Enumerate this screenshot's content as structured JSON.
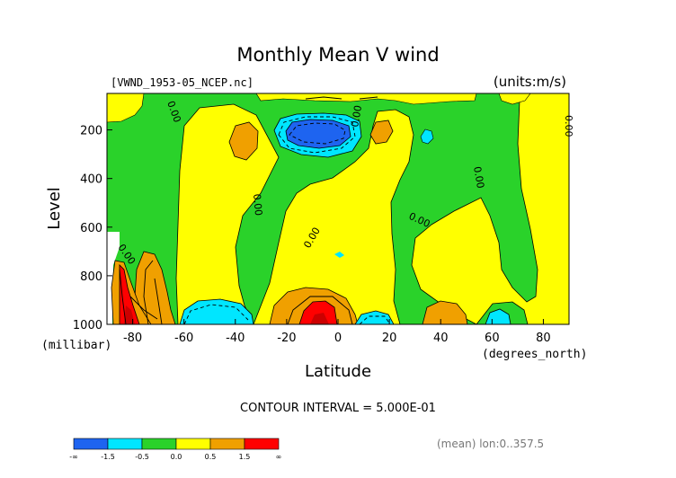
{
  "chart_data": {
    "type": "heatmap",
    "title": "Monthly Mean V wind",
    "dataset_label": "[VWND_1953-05_NCEP.nc]",
    "units_label": "(units:m/s)",
    "ylabel": "Level",
    "yunit": "(millibar)",
    "xlabel": "Latitude",
    "xunit": "(degrees_north)",
    "xlim": [
      -90,
      90
    ],
    "ylim": [
      1000,
      50
    ],
    "x_ticks": [
      -80,
      -60,
      -40,
      -20,
      0,
      20,
      40,
      60,
      80
    ],
    "y_ticks": [
      200,
      400,
      600,
      800,
      1000
    ],
    "contour_interval_text": "CONTOUR INTERVAL = 5.000E-01",
    "footer_text": "(mean) lon:0..357.5",
    "contour_labels": [
      "0.00",
      "0.00",
      "0.00",
      "0.00",
      "0.00",
      "0.00",
      "0.00",
      "0.00"
    ],
    "colorbar": {
      "labels": [
        "-∞",
        "-1.5",
        "-0.5",
        "0.0",
        "0.5",
        "1.5",
        "∞"
      ],
      "colors": [
        "#1e64f0",
        "#00e6ff",
        "#2ad22a",
        "#ffff00",
        "#f0a000",
        "#ff0000"
      ]
    },
    "colors": {
      "blue": "#1e64f0",
      "cyan": "#00e6ff",
      "green": "#2ad22a",
      "yellow": "#ffff00",
      "orange": "#f0a000",
      "red": "#ff0000",
      "darkred": "#cc0000"
    }
  }
}
